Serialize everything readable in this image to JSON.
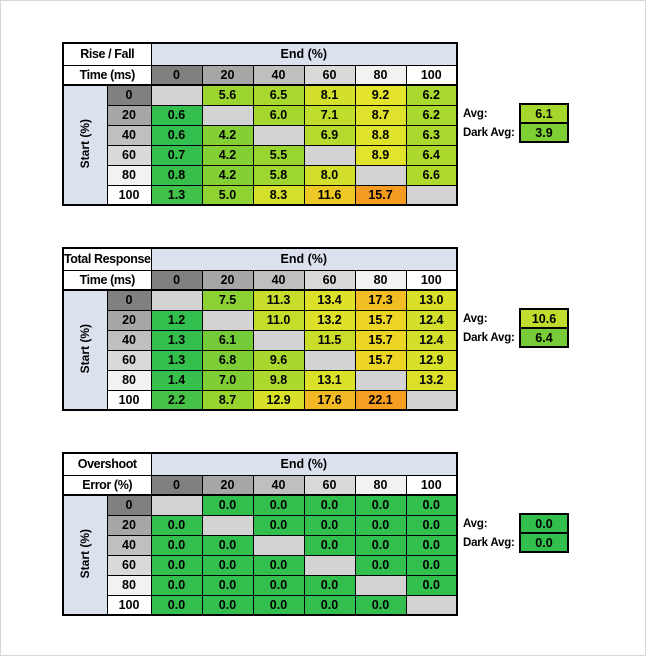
{
  "page": {
    "background": "#ffffff",
    "frame_border": "#d8d8d8"
  },
  "shared": {
    "end_header": "End (%)",
    "start_header": "Start (%)",
    "col_headers": [
      "0",
      "20",
      "40",
      "60",
      "80",
      "100"
    ],
    "row_headers": [
      "0",
      "20",
      "40",
      "60",
      "80",
      "100"
    ],
    "header_shades": [
      "#808080",
      "#A6A6A6",
      "#BFBFBF",
      "#D9D9D9",
      "#F2F2F2",
      "#FFFFFF"
    ],
    "band_color": "#DBE2EE",
    "blank_cell_color": "#D3D3D3",
    "grid_line_color": "#000000",
    "avg_label": "Avg:",
    "dark_avg_label": "Dark Avg:"
  },
  "tables": [
    {
      "id": "rise-fall-time",
      "title_line1": "Rise / Fall",
      "title_line2": "Time (ms)",
      "avg": {
        "value": "6.1",
        "color": "#A6D72F"
      },
      "dark_avg": {
        "value": "3.9",
        "color": "#7ECE35"
      },
      "cells": [
        [
          null,
          {
            "v": "5.6",
            "c": "#9CD52F"
          },
          {
            "v": "6.5",
            "c": "#A9D82E"
          },
          {
            "v": "8.1",
            "c": "#D2DF2C"
          },
          {
            "v": "9.2",
            "c": "#E5E42C"
          },
          {
            "v": "6.2",
            "c": "#A9D82E"
          }
        ],
        [
          {
            "v": "0.6",
            "c": "#33BF4D"
          },
          null,
          {
            "v": "6.0",
            "c": "#A5D72F"
          },
          {
            "v": "7.1",
            "c": "#C0DC2D"
          },
          {
            "v": "8.7",
            "c": "#DFE22C"
          },
          {
            "v": "6.2",
            "c": "#A9D82E"
          }
        ],
        [
          {
            "v": "0.6",
            "c": "#33BF4D"
          },
          {
            "v": "4.2",
            "c": "#84D034"
          },
          null,
          {
            "v": "6.9",
            "c": "#B6DA2E"
          },
          {
            "v": "8.8",
            "c": "#E0E32C"
          },
          {
            "v": "6.3",
            "c": "#ABD82E"
          }
        ],
        [
          {
            "v": "0.7",
            "c": "#35BF4C"
          },
          {
            "v": "4.2",
            "c": "#84D034"
          },
          {
            "v": "5.5",
            "c": "#99D530"
          },
          null,
          {
            "v": "8.9",
            "c": "#E1E32C"
          },
          {
            "v": "6.4",
            "c": "#ADD92E"
          }
        ],
        [
          {
            "v": "0.8",
            "c": "#38BF4B"
          },
          {
            "v": "4.2",
            "c": "#84D034"
          },
          {
            "v": "5.8",
            "c": "#9ED630"
          },
          {
            "v": "8.0",
            "c": "#D1DF2C"
          },
          null,
          {
            "v": "6.6",
            "c": "#B0D92E"
          }
        ],
        [
          {
            "v": "1.3",
            "c": "#40C149"
          },
          {
            "v": "5.0",
            "c": "#8FD332"
          },
          {
            "v": "8.3",
            "c": "#D5E02C"
          },
          {
            "v": "11.6",
            "c": "#EEC826"
          },
          {
            "v": "15.7",
            "c": "#F59B22"
          },
          null
        ]
      ]
    },
    {
      "id": "total-response-time",
      "title_line1": "Total Response",
      "title_line2": "Time (ms)",
      "avg": {
        "value": "10.6",
        "color": "#C0DC2C"
      },
      "dark_avg": {
        "value": "6.4",
        "color": "#77CC37"
      },
      "cells": [
        [
          null,
          {
            "v": "7.5",
            "c": "#8BD133"
          },
          {
            "v": "11.3",
            "c": "#C8DD2B"
          },
          {
            "v": "13.4",
            "c": "#DEE129"
          },
          {
            "v": "17.3",
            "c": "#F2BC24"
          },
          {
            "v": "13.0",
            "c": "#DAE02A"
          }
        ],
        [
          {
            "v": "1.2",
            "c": "#33BF4D"
          },
          null,
          {
            "v": "11.0",
            "c": "#C5DC2B"
          },
          {
            "v": "13.2",
            "c": "#DCE029"
          },
          {
            "v": "15.7",
            "c": "#EDD526"
          },
          {
            "v": "12.4",
            "c": "#D3DF2B"
          }
        ],
        [
          {
            "v": "1.3",
            "c": "#34BF4D"
          },
          {
            "v": "6.1",
            "c": "#73CB38"
          },
          null,
          {
            "v": "11.5",
            "c": "#CADD2B"
          },
          {
            "v": "15.7",
            "c": "#EDD526"
          },
          {
            "v": "12.4",
            "c": "#D3DF2B"
          }
        ],
        [
          {
            "v": "1.3",
            "c": "#34BF4D"
          },
          {
            "v": "6.8",
            "c": "#7DCE36"
          },
          {
            "v": "9.6",
            "c": "#AAD72F"
          },
          null,
          {
            "v": "15.7",
            "c": "#EDD526"
          },
          {
            "v": "12.9",
            "c": "#D9E02A"
          }
        ],
        [
          {
            "v": "1.4",
            "c": "#36BF4C"
          },
          {
            "v": "7.0",
            "c": "#80CE35"
          },
          {
            "v": "9.8",
            "c": "#ADD82E"
          },
          {
            "v": "13.1",
            "c": "#DBE029"
          },
          null,
          {
            "v": "13.2",
            "c": "#DCE029"
          }
        ],
        [
          {
            "v": "2.2",
            "c": "#46C247"
          },
          {
            "v": "8.7",
            "c": "#97D430"
          },
          {
            "v": "12.9",
            "c": "#D9E02A"
          },
          {
            "v": "17.6",
            "c": "#F2B825"
          },
          {
            "v": "22.1",
            "c": "#F59E21"
          },
          null
        ]
      ]
    },
    {
      "id": "overshoot-error",
      "title_line1": "Overshoot",
      "title_line2": "Error (%)",
      "avg": {
        "value": "0.0",
        "color": "#33BF4D"
      },
      "dark_avg": {
        "value": "0.0",
        "color": "#33BF4D"
      },
      "cells": [
        [
          null,
          {
            "v": "0.0",
            "c": "#33BF4D"
          },
          {
            "v": "0.0",
            "c": "#33BF4D"
          },
          {
            "v": "0.0",
            "c": "#33BF4D"
          },
          {
            "v": "0.0",
            "c": "#33BF4D"
          },
          {
            "v": "0.0",
            "c": "#33BF4D"
          }
        ],
        [
          {
            "v": "0.0",
            "c": "#33BF4D"
          },
          null,
          {
            "v": "0.0",
            "c": "#33BF4D"
          },
          {
            "v": "0.0",
            "c": "#33BF4D"
          },
          {
            "v": "0.0",
            "c": "#33BF4D"
          },
          {
            "v": "0.0",
            "c": "#33BF4D"
          }
        ],
        [
          {
            "v": "0.0",
            "c": "#33BF4D"
          },
          {
            "v": "0.0",
            "c": "#33BF4D"
          },
          null,
          {
            "v": "0.0",
            "c": "#33BF4D"
          },
          {
            "v": "0.0",
            "c": "#33BF4D"
          },
          {
            "v": "0.0",
            "c": "#33BF4D"
          }
        ],
        [
          {
            "v": "0.0",
            "c": "#33BF4D"
          },
          {
            "v": "0.0",
            "c": "#33BF4D"
          },
          {
            "v": "0.0",
            "c": "#33BF4D"
          },
          null,
          {
            "v": "0.0",
            "c": "#33BF4D"
          },
          {
            "v": "0.0",
            "c": "#33BF4D"
          }
        ],
        [
          {
            "v": "0.0",
            "c": "#33BF4D"
          },
          {
            "v": "0.0",
            "c": "#33BF4D"
          },
          {
            "v": "0.0",
            "c": "#33BF4D"
          },
          {
            "v": "0.0",
            "c": "#33BF4D"
          },
          null,
          {
            "v": "0.0",
            "c": "#33BF4D"
          }
        ],
        [
          {
            "v": "0.0",
            "c": "#33BF4D"
          },
          {
            "v": "0.0",
            "c": "#33BF4D"
          },
          {
            "v": "0.0",
            "c": "#33BF4D"
          },
          {
            "v": "0.0",
            "c": "#33BF4D"
          },
          {
            "v": "0.0",
            "c": "#33BF4D"
          },
          null
        ]
      ]
    }
  ],
  "chart_data": [
    {
      "type": "heatmap",
      "title": "Rise / Fall Time (ms)",
      "xlabel": "End (%)",
      "ylabel": "Start (%)",
      "x_ticks": [
        0,
        20,
        40,
        60,
        80,
        100
      ],
      "y_ticks": [
        0,
        20,
        40,
        60,
        80,
        100
      ],
      "values": [
        [
          null,
          5.6,
          6.5,
          8.1,
          9.2,
          6.2
        ],
        [
          0.6,
          null,
          6.0,
          7.1,
          8.7,
          6.2
        ],
        [
          0.6,
          4.2,
          null,
          6.9,
          8.8,
          6.3
        ],
        [
          0.7,
          4.2,
          5.5,
          null,
          8.9,
          6.4
        ],
        [
          0.8,
          4.2,
          5.8,
          8.0,
          null,
          6.6
        ],
        [
          1.3,
          5.0,
          8.3,
          11.6,
          15.7,
          null
        ]
      ],
      "avg": 6.1,
      "dark_avg": 3.9,
      "color_scale": "green-yellow-orange, low=green high=orange, diagonal blank gray"
    },
    {
      "type": "heatmap",
      "title": "Total Response Time (ms)",
      "xlabel": "End (%)",
      "ylabel": "Start (%)",
      "x_ticks": [
        0,
        20,
        40,
        60,
        80,
        100
      ],
      "y_ticks": [
        0,
        20,
        40,
        60,
        80,
        100
      ],
      "values": [
        [
          null,
          7.5,
          11.3,
          13.4,
          17.3,
          13.0
        ],
        [
          1.2,
          null,
          11.0,
          13.2,
          15.7,
          12.4
        ],
        [
          1.3,
          6.1,
          null,
          11.5,
          15.7,
          12.4
        ],
        [
          1.3,
          6.8,
          9.6,
          null,
          15.7,
          12.9
        ],
        [
          1.4,
          7.0,
          9.8,
          13.1,
          null,
          13.2
        ],
        [
          2.2,
          8.7,
          12.9,
          17.6,
          22.1,
          null
        ]
      ],
      "avg": 10.6,
      "dark_avg": 6.4,
      "color_scale": "green-yellow-orange, low=green high=orange, diagonal blank gray"
    },
    {
      "type": "heatmap",
      "title": "Overshoot Error (%)",
      "xlabel": "End (%)",
      "ylabel": "Start (%)",
      "x_ticks": [
        0,
        20,
        40,
        60,
        80,
        100
      ],
      "y_ticks": [
        0,
        20,
        40,
        60,
        80,
        100
      ],
      "values": [
        [
          null,
          0.0,
          0.0,
          0.0,
          0.0,
          0.0
        ],
        [
          0.0,
          null,
          0.0,
          0.0,
          0.0,
          0.0
        ],
        [
          0.0,
          0.0,
          null,
          0.0,
          0.0,
          0.0
        ],
        [
          0.0,
          0.0,
          0.0,
          null,
          0.0,
          0.0
        ],
        [
          0.0,
          0.0,
          0.0,
          0.0,
          null,
          0.0
        ],
        [
          0.0,
          0.0,
          0.0,
          0.0,
          0.0,
          null
        ]
      ],
      "avg": 0.0,
      "dark_avg": 0.0,
      "color_scale": "all green, diagonal blank gray"
    }
  ]
}
